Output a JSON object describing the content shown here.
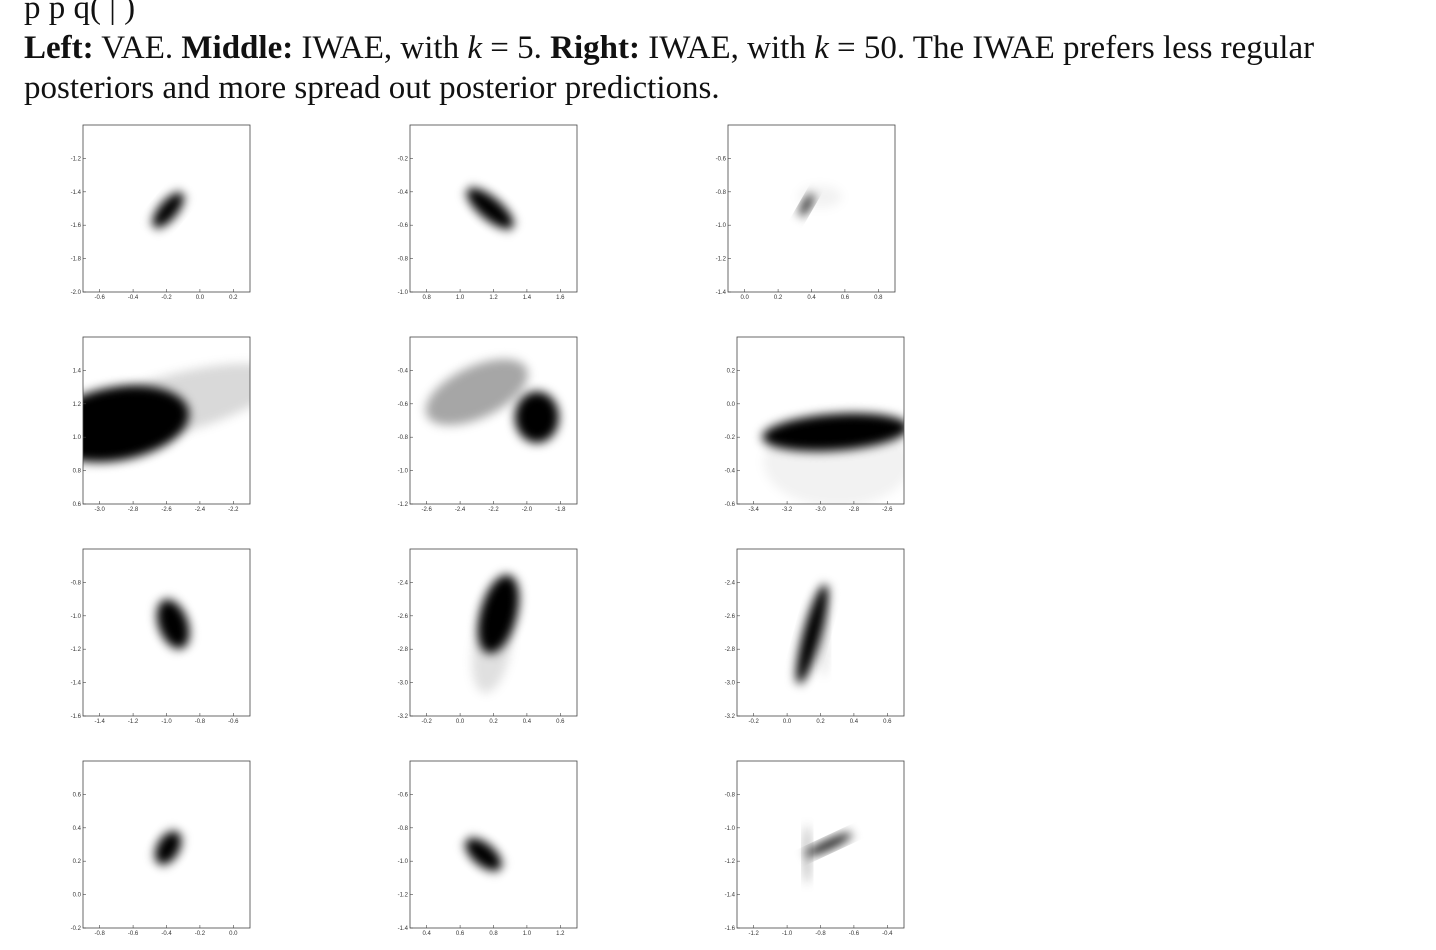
{
  "caption": {
    "line0": "p                                                                   p                                          q(  |  )",
    "left_bold": "Left:",
    "left_text": " VAE. ",
    "middle_bold": "Middle:",
    "middle_text": " IWAE, with ",
    "k_var": "k",
    "middle_eq": " = 5. ",
    "right_bold": "Right:",
    "right_text": " IWAE, with ",
    "right_eq": " = 50. The IWAE prefers less regular",
    "line2": "posteriors and more spread out posterior predictions."
  },
  "chart_data": [
    {
      "type": "heatmap",
      "panel": "row1-left",
      "xticks": [
        "-0.6",
        "-0.4",
        "-0.2",
        "0.0",
        "0.2"
      ],
      "yticks": [
        "-1.2",
        "-1.4",
        "-1.6",
        "-1.8",
        "-2.0"
      ],
      "xlim": [
        -0.75,
        0.25
      ],
      "ylim": [
        -2.0,
        -1.0
      ],
      "blobs": [
        {
          "cx": -0.24,
          "cy": -1.51,
          "sx": 0.025,
          "sy": 0.06,
          "rot": 40,
          "w": 1.0
        }
      ]
    },
    {
      "type": "heatmap",
      "panel": "row1-middle",
      "xticks": [
        "0.8",
        "1.0",
        "1.2",
        "1.4",
        "1.6"
      ],
      "yticks": [
        "-0.2",
        "-0.4",
        "-0.6",
        "-0.8",
        "-1.0"
      ],
      "xlim": [
        0.75,
        1.75
      ],
      "ylim": [
        -1.2,
        -0.2
      ],
      "blobs": [
        {
          "cx": 1.23,
          "cy": -0.7,
          "sx": 0.03,
          "sy": 0.08,
          "rot": -50,
          "w": 1.0
        }
      ]
    },
    {
      "type": "heatmap",
      "panel": "row1-right",
      "xticks": [
        "0.0",
        "0.2",
        "0.4",
        "0.6",
        "0.8"
      ],
      "yticks": [
        "-0.6",
        "-0.8",
        "-1.0",
        "-1.2",
        "-1.4"
      ],
      "xlim": [
        -0.1,
        0.9
      ],
      "ylim": [
        -1.6,
        -0.6
      ],
      "blobs": [
        {
          "cx": 0.37,
          "cy": -1.08,
          "sx": 0.01,
          "sy": 0.035,
          "rot": 30,
          "w": 1.0
        },
        {
          "cx": 0.45,
          "cy": -1.03,
          "sx": 0.06,
          "sy": 0.03,
          "rot": 0,
          "w": 0.05
        }
      ]
    },
    {
      "type": "heatmap",
      "panel": "row2-left",
      "xticks": [
        "-3.0",
        "-2.8",
        "-2.6",
        "-2.4",
        "-2.2"
      ],
      "yticks": [
        "1.4",
        "1.2",
        "1.0",
        "0.8",
        "0.6"
      ],
      "xlim": [
        -3.0,
        -2.0
      ],
      "ylim": [
        0.5,
        1.5
      ],
      "blobs": [
        {
          "cx": -2.8,
          "cy": 0.98,
          "sx": 0.2,
          "sy": 0.1,
          "rot": -10,
          "w": 1.0
        },
        {
          "cx": -2.45,
          "cy": 1.1,
          "sx": 0.3,
          "sy": 0.08,
          "rot": -15,
          "w": 0.15
        }
      ]
    },
    {
      "type": "heatmap",
      "panel": "row2-middle",
      "xticks": [
        "-2.6",
        "-2.4",
        "-2.2",
        "-2.0",
        "-1.8"
      ],
      "yticks": [
        "-0.4",
        "-0.6",
        "-0.8",
        "-1.0",
        "-1.2"
      ],
      "xlim": [
        -2.75,
        -1.75
      ],
      "ylim": [
        -1.3,
        -0.3
      ],
      "blobs": [
        {
          "cx": -1.99,
          "cy": -0.78,
          "sx": 0.06,
          "sy": 0.07,
          "rot": 0,
          "w": 1.0
        },
        {
          "cx": -2.35,
          "cy": -0.63,
          "sx": 0.15,
          "sy": 0.07,
          "rot": -25,
          "w": 0.35
        }
      ]
    },
    {
      "type": "heatmap",
      "panel": "row2-right",
      "xticks": [
        "-3.4",
        "-3.2",
        "-3.0",
        "-2.8",
        "-2.6"
      ],
      "yticks": [
        "0.2",
        "0.0",
        "-0.2",
        "-0.4",
        "-0.6"
      ],
      "xlim": [
        -3.5,
        -2.5
      ],
      "ylim": [
        -0.6,
        0.4
      ],
      "blobs": [
        {
          "cx": -2.91,
          "cy": -0.17,
          "sx": 0.2,
          "sy": 0.05,
          "rot": -4,
          "w": 1.0
        },
        {
          "cx": -2.9,
          "cy": -0.35,
          "sx": 0.2,
          "sy": 0.12,
          "rot": 0,
          "w": 0.05
        }
      ]
    },
    {
      "type": "heatmap",
      "panel": "row3-left",
      "xticks": [
        "-1.4",
        "-1.2",
        "-1.0",
        "-0.8",
        "-0.6"
      ],
      "yticks": [
        "-0.8",
        "-1.0",
        "-1.2",
        "-1.4",
        "-1.6"
      ],
      "xlim": [
        -1.5,
        -0.5
      ],
      "ylim": [
        -1.7,
        -0.7
      ],
      "blobs": [
        {
          "cx": -0.96,
          "cy": -1.15,
          "sx": 0.04,
          "sy": 0.07,
          "rot": -20,
          "w": 1.0
        }
      ]
    },
    {
      "type": "heatmap",
      "panel": "row3-middle",
      "xticks": [
        "-0.2",
        "0.0",
        "0.2",
        "0.4",
        "0.6"
      ],
      "yticks": [
        "-2.4",
        "-2.6",
        "-2.8",
        "-3.0",
        "-3.2"
      ],
      "xlim": [
        -0.3,
        0.7
      ],
      "ylim": [
        -3.3,
        -2.3
      ],
      "blobs": [
        {
          "cx": 0.23,
          "cy": -2.69,
          "sx": 0.05,
          "sy": 0.11,
          "rot": 15,
          "w": 1.0
        },
        {
          "cx": 0.19,
          "cy": -2.9,
          "sx": 0.05,
          "sy": 0.12,
          "rot": 10,
          "w": 0.12
        }
      ]
    },
    {
      "type": "heatmap",
      "panel": "row3-right",
      "xticks": [
        "-0.2",
        "0.0",
        "0.2",
        "0.4",
        "0.6"
      ],
      "yticks": [
        "-2.4",
        "-2.6",
        "-2.8",
        "-3.0",
        "-3.2"
      ],
      "xlim": [
        -0.35,
        0.65
      ],
      "ylim": [
        -3.2,
        -2.2
      ],
      "blobs": [
        {
          "cx": 0.1,
          "cy": -2.71,
          "sx": 0.025,
          "sy": 0.14,
          "rot": 15,
          "w": 1.0
        },
        {
          "cx": 0.17,
          "cy": -2.7,
          "sx": 0.01,
          "sy": 0.12,
          "rot": 0,
          "w": 0.15
        }
      ]
    },
    {
      "type": "heatmap",
      "panel": "row4-left",
      "xticks": [
        "-0.8",
        "-0.6",
        "-0.4",
        "-0.2",
        "0.0"
      ],
      "yticks": [
        "0.6",
        "0.4",
        "0.2",
        "0.0",
        "-0.2"
      ],
      "xlim": [
        -0.8,
        0.2
      ],
      "ylim": [
        -0.27,
        0.73
      ],
      "blobs": [
        {
          "cx": -0.29,
          "cy": 0.21,
          "sx": 0.03,
          "sy": 0.05,
          "rot": 30,
          "w": 1.0
        }
      ]
    },
    {
      "type": "heatmap",
      "panel": "row4-middle",
      "xticks": [
        "0.4",
        "0.6",
        "0.8",
        "1.0",
        "1.2"
      ],
      "yticks": [
        "-0.6",
        "-0.8",
        "-1.0",
        "-1.2",
        "-1.4"
      ],
      "xlim": [
        0.3,
        1.3
      ],
      "ylim": [
        -1.4,
        -0.4
      ],
      "blobs": [
        {
          "cx": 0.74,
          "cy": -0.96,
          "sx": 0.03,
          "sy": 0.06,
          "rot": -50,
          "w": 1.0
        }
      ]
    },
    {
      "type": "heatmap",
      "panel": "row4-right",
      "xticks": [
        "-1.2",
        "-1.0",
        "-0.8",
        "-0.6",
        "-0.4"
      ],
      "yticks": [
        "-0.8",
        "-1.0",
        "-1.2",
        "-1.4",
        "-1.6"
      ],
      "xlim": [
        -1.35,
        -0.35
      ],
      "ylim": [
        -1.6,
        -0.6
      ],
      "blobs": [
        {
          "cx": -0.8,
          "cy": -1.1,
          "sx": 0.07,
          "sy": 0.012,
          "rot": -25,
          "w": 1.0
        },
        {
          "cx": -0.93,
          "cy": -1.16,
          "sx": 0.008,
          "sy": 0.08,
          "rot": 0,
          "w": 0.35
        }
      ]
    }
  ]
}
